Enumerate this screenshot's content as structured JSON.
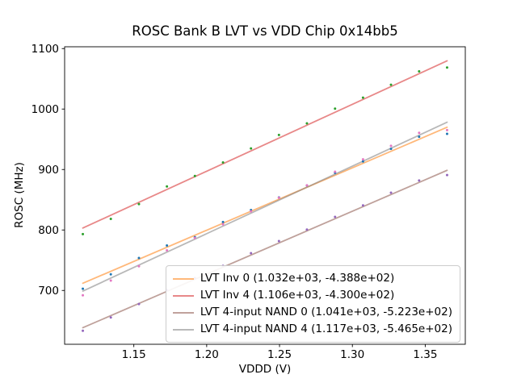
{
  "chart_data": {
    "type": "scatter",
    "title": "ROSC Bank B LVT vs VDD Chip 0x14bb5",
    "xlabel": "VDDD (V)",
    "ylabel": "ROSC (MHz)",
    "xlim": [
      1.1025,
      1.3775
    ],
    "ylim": [
      611,
      1103
    ],
    "xticks": [
      1.15,
      1.2,
      1.25,
      1.3,
      1.35
    ],
    "xtick_labels": [
      "1.15",
      "1.20",
      "1.25",
      "1.30",
      "1.35"
    ],
    "yticks": [
      700,
      800,
      900,
      1000,
      1100
    ],
    "grid": false,
    "legend_position": "lower right",
    "x": [
      1.115,
      1.1342,
      1.1535,
      1.1727,
      1.1919,
      1.2112,
      1.2304,
      1.2496,
      1.2688,
      1.2881,
      1.3073,
      1.3265,
      1.3458,
      1.365
    ],
    "series": [
      {
        "name": "LVT Inv 0 (1.032e+03, -4.388e+02)",
        "fit_slope": 1032.0,
        "fit_intercept": -438.8,
        "point_color": "#1f77b4",
        "line_color": "#ff7f0e",
        "points": [
          702.9,
          726.7,
          753.6,
          774.4,
          788.2,
          813.2,
          833.0,
          853.8,
          873.6,
          894.5,
          913.3,
          934.1,
          954.1,
          959.0
        ]
      },
      {
        "name": "LVT Inv 4 (1.106e+03, -4.300e+02)",
        "fit_slope": 1106.0,
        "fit_intercept": -430.0,
        "point_color": "#2ca02c",
        "line_color": "#d62728",
        "points": [
          793.2,
          818.4,
          842.8,
          872.0,
          889.3,
          911.6,
          934.8,
          957.1,
          976.3,
          1000.6,
          1018.9,
          1040.1,
          1062.4,
          1068.7
        ]
      },
      {
        "name": "LVT 4-input NAND 0 (1.041e+03, -5.223e+02)",
        "fit_slope": 1041.0,
        "fit_intercept": -522.3,
        "point_color": "#9467bd",
        "line_color": "#8c564b",
        "points": [
          633.4,
          655.4,
          677.5,
          700.5,
          720.5,
          740.6,
          761.6,
          781.6,
          800.6,
          821.7,
          840.7,
          861.7,
          881.8,
          890.8
        ]
      },
      {
        "name": "LVT 4-input NAND 4 (1.117e+03, -5.465e+02)",
        "fit_slope": 1117.0,
        "fit_intercept": -546.5,
        "point_color": "#e377c2",
        "line_color": "#7f7f7f",
        "points": [
          692.0,
          716.4,
          740.0,
          766.4,
          786.9,
          809.4,
          830.9,
          853.3,
          873.8,
          896.3,
          916.8,
          939.2,
          960.7,
          965.2
        ]
      }
    ]
  }
}
